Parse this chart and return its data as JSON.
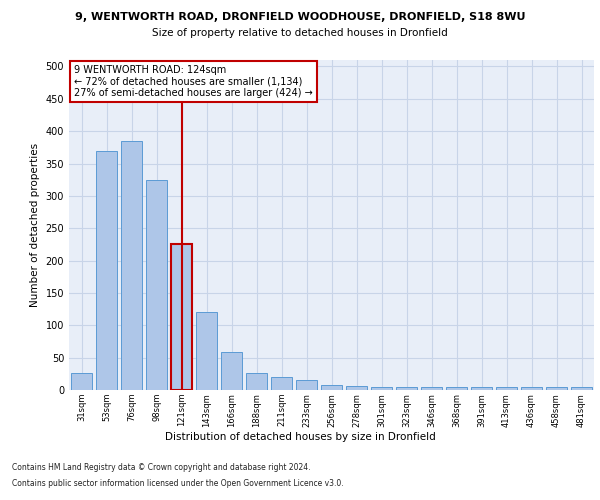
{
  "title_line1": "9, WENTWORTH ROAD, DRONFIELD WOODHOUSE, DRONFIELD, S18 8WU",
  "title_line2": "Size of property relative to detached houses in Dronfield",
  "xlabel": "Distribution of detached houses by size in Dronfield",
  "ylabel": "Number of detached properties",
  "footer_line1": "Contains HM Land Registry data © Crown copyright and database right 2024.",
  "footer_line2": "Contains public sector information licensed under the Open Government Licence v3.0.",
  "categories": [
    "31sqm",
    "53sqm",
    "76sqm",
    "98sqm",
    "121sqm",
    "143sqm",
    "166sqm",
    "188sqm",
    "211sqm",
    "233sqm",
    "256sqm",
    "278sqm",
    "301sqm",
    "323sqm",
    "346sqm",
    "368sqm",
    "391sqm",
    "413sqm",
    "436sqm",
    "458sqm",
    "481sqm"
  ],
  "values": [
    27,
    370,
    385,
    325,
    225,
    120,
    58,
    27,
    20,
    16,
    7,
    6,
    5,
    5,
    4,
    4,
    4,
    4,
    4,
    4,
    5
  ],
  "bar_color": "#aec6e8",
  "bar_edge_color": "#5b9bd5",
  "highlight_bar_index": 4,
  "highlight_bar_edge_color": "#c00000",
  "vline_color": "#c00000",
  "annotation_text_line1": "9 WENTWORTH ROAD: 124sqm",
  "annotation_text_line2": "← 72% of detached houses are smaller (1,134)",
  "annotation_text_line3": "27% of semi-detached houses are larger (424) →",
  "annotation_box_color": "#ffffff",
  "annotation_box_edge_color": "#c00000",
  "ylim": [
    0,
    510
  ],
  "yticks": [
    0,
    50,
    100,
    150,
    200,
    250,
    300,
    350,
    400,
    450,
    500
  ],
  "grid_color": "#c8d4e8",
  "background_color": "#e8eef8",
  "fig_background": "#ffffff"
}
